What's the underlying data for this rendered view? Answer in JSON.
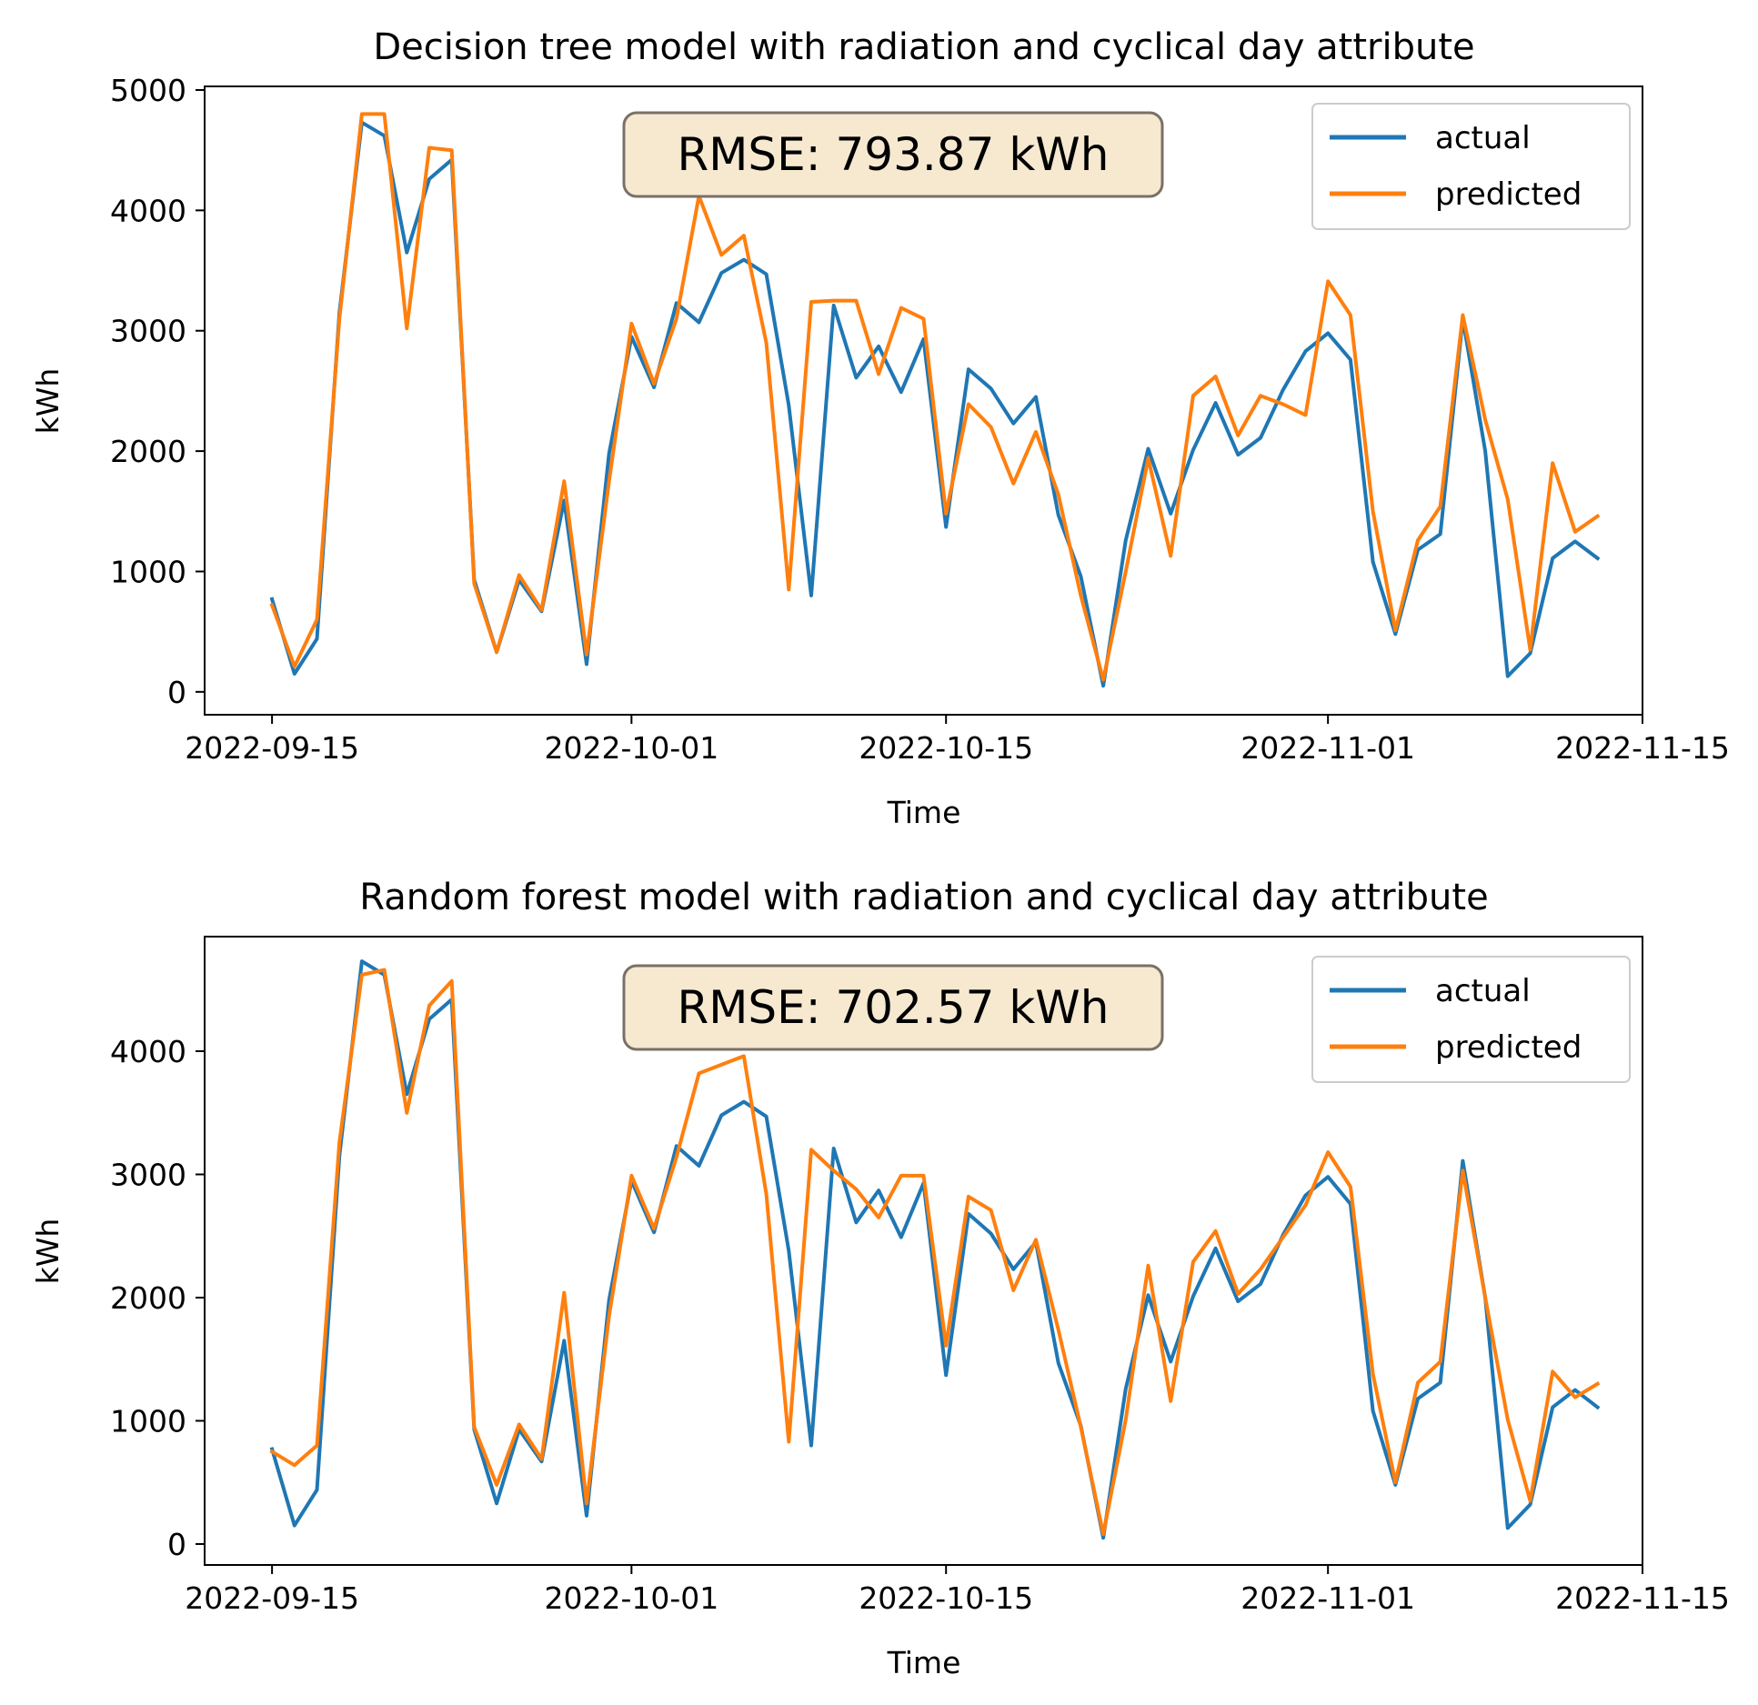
{
  "chart_data": [
    {
      "type": "line",
      "title": "Decision tree model with radiation and cyclical day attribute",
      "xlabel": "Time",
      "ylabel": "kWh",
      "x_start": "2022-09-15",
      "x_step_days": 1,
      "xlim": [
        "2022-09-12",
        "2022-11-15"
      ],
      "ylim": [
        -190,
        5030
      ],
      "x_ticks": [
        "2022-09-15",
        "2022-10-01",
        "2022-10-15",
        "2022-11-01",
        "2022-11-15"
      ],
      "y_ticks": [
        0,
        1000,
        2000,
        3000,
        4000,
        5000
      ],
      "grid": false,
      "legend_position": "top-right",
      "annotation": "RMSE: 793.87 kWh",
      "series": [
        {
          "name": "actual",
          "color": "#1f77b4",
          "values": [
            770,
            150,
            440,
            3150,
            4730,
            4620,
            3650,
            4260,
            4420,
            930,
            330,
            930,
            670,
            1590,
            230,
            1980,
            2950,
            2530,
            3230,
            3070,
            3480,
            3590,
            3470,
            2380,
            800,
            3210,
            2610,
            2870,
            2490,
            2930,
            1370,
            2680,
            2520,
            2230,
            2450,
            1470,
            960,
            50,
            1260,
            2020,
            1480,
            2010,
            2400,
            1970,
            2110,
            2510,
            2830,
            2980,
            2760,
            1080,
            480,
            1180,
            1310,
            3100,
            2000,
            130,
            320,
            1110,
            1250,
            1110
          ]
        },
        {
          "name": "predicted",
          "color": "#ff7f0e",
          "values": [
            720,
            210,
            600,
            3100,
            4800,
            4800,
            3020,
            4520,
            4500,
            900,
            330,
            970,
            680,
            1750,
            310,
            1750,
            3060,
            2560,
            3100,
            4120,
            3630,
            3790,
            2900,
            850,
            3240,
            3250,
            3250,
            2640,
            3190,
            3100,
            1480,
            2390,
            2200,
            1730,
            2160,
            1640,
            800,
            100,
            1000,
            1940,
            1130,
            2460,
            2620,
            2130,
            2460,
            2390,
            2300,
            3410,
            3130,
            1500,
            510,
            1260,
            1540,
            3130,
            2260,
            1600,
            350,
            1900,
            1330,
            1460
          ]
        }
      ]
    },
    {
      "type": "line",
      "title": "Random forest model with radiation and cyclical day attribute",
      "xlabel": "Time",
      "ylabel": "kWh",
      "x_start": "2022-09-15",
      "x_step_days": 1,
      "xlim": [
        "2022-09-12",
        "2022-11-15"
      ],
      "ylim": [
        -170,
        4930
      ],
      "x_ticks": [
        "2022-09-15",
        "2022-10-01",
        "2022-10-15",
        "2022-11-01",
        "2022-11-15"
      ],
      "y_ticks": [
        0,
        1000,
        2000,
        3000,
        4000
      ],
      "grid": false,
      "legend_position": "top-right",
      "annotation": "RMSE: 702.57 kWh",
      "series": [
        {
          "name": "actual",
          "color": "#1f77b4",
          "values": [
            770,
            150,
            440,
            3150,
            4730,
            4620,
            3650,
            4260,
            4420,
            930,
            330,
            930,
            670,
            1650,
            230,
            1980,
            2950,
            2530,
            3230,
            3070,
            3480,
            3590,
            3470,
            2380,
            800,
            3210,
            2610,
            2870,
            2490,
            2930,
            1370,
            2680,
            2520,
            2230,
            2450,
            1470,
            960,
            50,
            1260,
            2020,
            1480,
            2010,
            2400,
            1970,
            2110,
            2510,
            2830,
            2980,
            2760,
            1080,
            480,
            1180,
            1310,
            3110,
            2000,
            130,
            320,
            1110,
            1250,
            1110
          ]
        },
        {
          "name": "predicted",
          "color": "#ff7f0e",
          "values": [
            750,
            640,
            800,
            3260,
            4620,
            4660,
            3500,
            4370,
            4570,
            950,
            480,
            970,
            690,
            2040,
            330,
            1850,
            2990,
            2560,
            3140,
            3820,
            3890,
            3960,
            2840,
            830,
            3200,
            3030,
            2880,
            2650,
            2990,
            2990,
            1610,
            2820,
            2710,
            2060,
            2470,
            1740,
            950,
            80,
            1010,
            2260,
            1160,
            2290,
            2540,
            2030,
            2230,
            2490,
            2750,
            3180,
            2900,
            1380,
            500,
            1310,
            1480,
            3030,
            2000,
            1010,
            350,
            1400,
            1190,
            1300
          ]
        }
      ]
    }
  ]
}
